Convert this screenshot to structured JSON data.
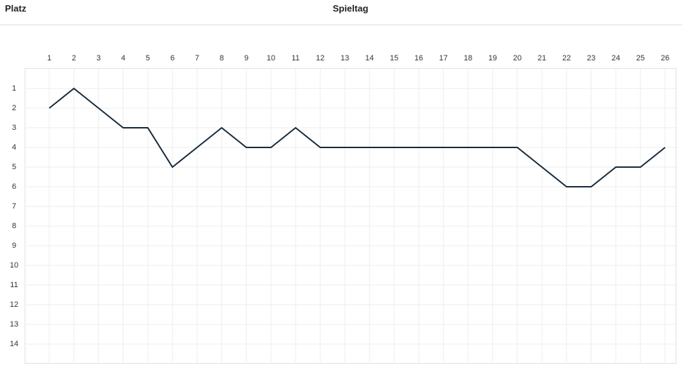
{
  "chart_data": {
    "type": "line",
    "y_label": "Platz",
    "x_label": "Spieltag",
    "x": [
      1,
      2,
      3,
      4,
      5,
      6,
      7,
      8,
      9,
      10,
      11,
      12,
      13,
      14,
      15,
      16,
      17,
      18,
      19,
      20,
      21,
      22,
      23,
      24,
      25,
      26
    ],
    "series": [
      {
        "color": "#182b3c",
        "values": [
          2,
          1,
          2,
          3,
          3,
          5,
          4,
          3,
          4,
          4,
          3,
          4,
          4,
          4,
          4,
          4,
          4,
          4,
          4,
          4,
          5,
          6,
          6,
          5,
          5,
          4
        ]
      }
    ],
    "xlim": [
      0,
      26.5
    ],
    "xticks": [
      1,
      2,
      3,
      4,
      5,
      6,
      7,
      8,
      9,
      10,
      11,
      12,
      13,
      14,
      15,
      16,
      17,
      18,
      19,
      20,
      21,
      22,
      23,
      24,
      25,
      26
    ],
    "ylim": [
      0,
      15
    ],
    "yticks": [
      1,
      2,
      3,
      4,
      5,
      6,
      7,
      8,
      9,
      10,
      11,
      12,
      13,
      14
    ],
    "y_inverted": true,
    "x_axis_position": "top",
    "grid": true
  }
}
